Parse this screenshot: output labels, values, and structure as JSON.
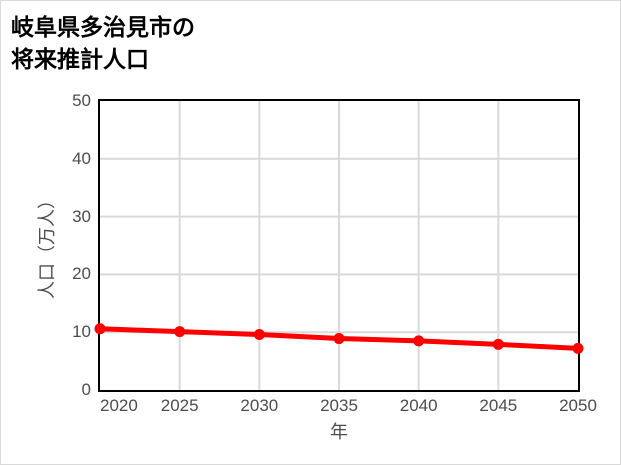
{
  "title": "岐阜県多治見市の\n将来推計人口",
  "chart_data": {
    "type": "line",
    "title": "岐阜県多治見市の将来推計人口",
    "xlabel": "年",
    "ylabel": "人口（万人）",
    "x": [
      2020,
      2025,
      2030,
      2035,
      2040,
      2045,
      2050
    ],
    "series": [
      {
        "name": "将来推計人口",
        "values": [
          10.6,
          10.1,
          9.6,
          8.9,
          8.5,
          7.9,
          7.2
        ],
        "color": "#ff0000",
        "marker": "circle"
      }
    ],
    "xlim": [
      2020,
      2050
    ],
    "ylim": [
      0,
      50
    ],
    "x_ticks": [
      2020,
      2025,
      2030,
      2035,
      2040,
      2045,
      2050
    ],
    "y_ticks": [
      0,
      10,
      20,
      30,
      40,
      50
    ],
    "grid": true,
    "grid_color": "#d9d9d9",
    "frame_color": "#000000",
    "tick_label_color": "#4d4d4d",
    "legend": "none"
  }
}
